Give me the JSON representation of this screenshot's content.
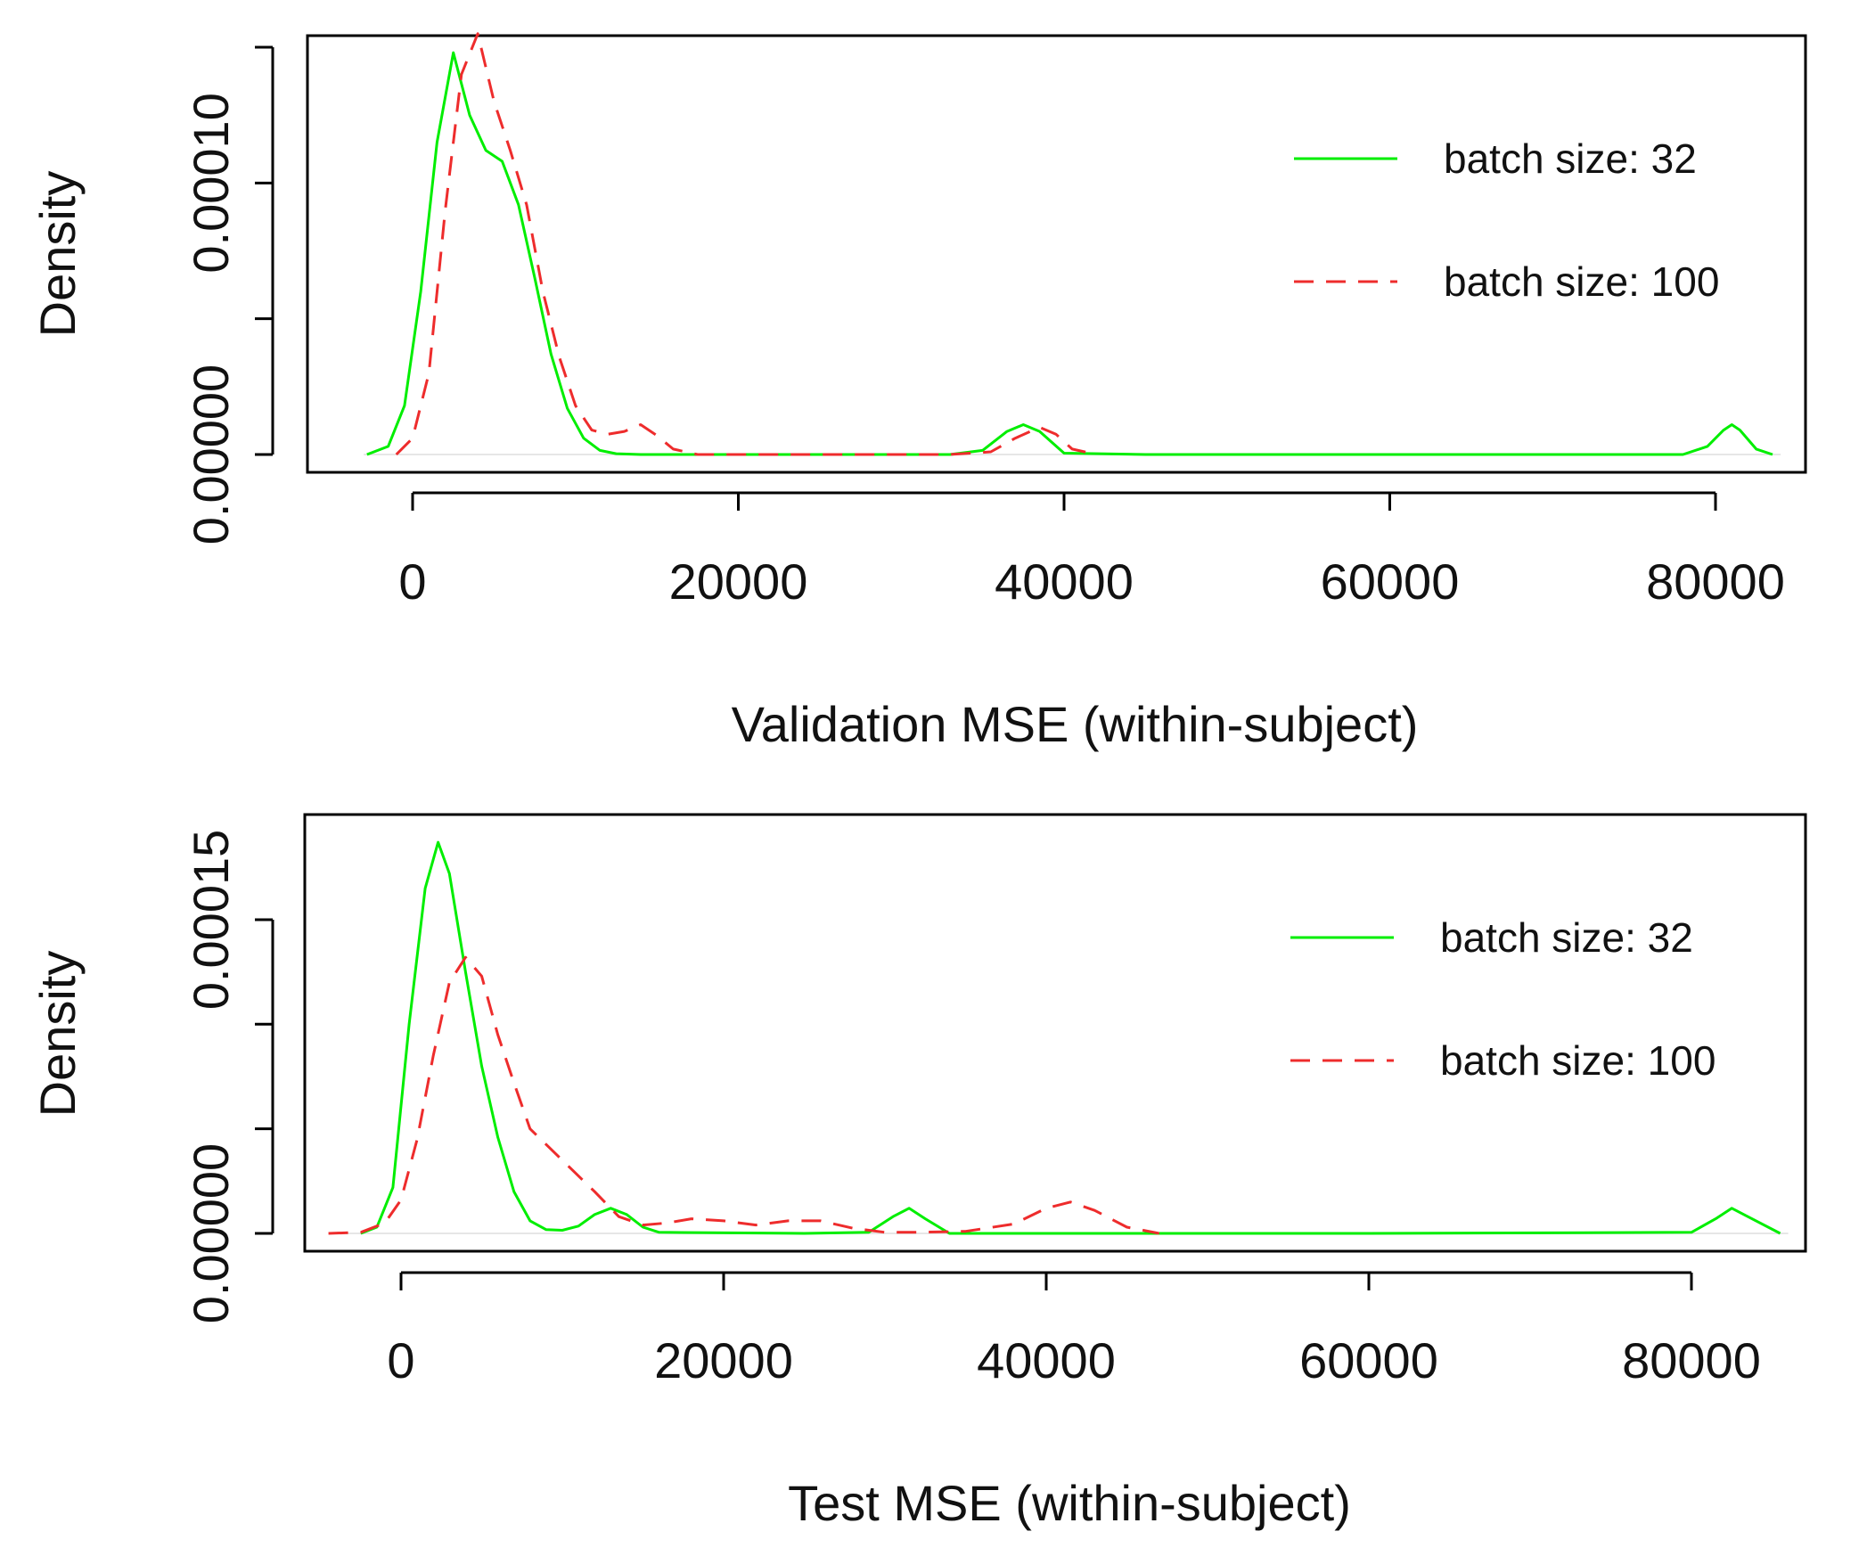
{
  "chart_data": [
    {
      "type": "line",
      "xlabel": "Validation MSE (within-subject)",
      "ylabel": "Density",
      "xlim": [
        -3000,
        84000
      ],
      "ylim": [
        0,
        0.000151
      ],
      "xticks": [
        0,
        20000,
        40000,
        60000,
        80000
      ],
      "xtick_labels": [
        "0",
        "20000",
        "40000",
        "60000",
        "80000"
      ],
      "yticks": [
        0,
        5e-05,
        0.0001,
        0.00015
      ],
      "ytick_labels": [
        {
          "value": 0,
          "label": "0.00000"
        },
        {
          "value": 0.0001,
          "label": "0.00010"
        }
      ],
      "legend": [
        "batch size: 32",
        "batch size: 100"
      ],
      "legend_position": "top-right",
      "series": [
        {
          "name": "batch size: 32",
          "color": "#00ee00",
          "dash": "solid",
          "x": [
            -2800,
            -1500,
            -500,
            500,
            1500,
            2500,
            3500,
            4500,
            5500,
            6500,
            7500,
            8500,
            9500,
            10500,
            11500,
            12500,
            14000,
            17000,
            25000,
            33000,
            35000,
            36500,
            37500,
            38500,
            40000,
            45000,
            60000,
            78000,
            79500,
            80500,
            81000,
            81500,
            82500,
            83500
          ],
          "y": [
            0,
            3e-06,
            1.8e-05,
            6e-05,
            0.000115,
            0.000148,
            0.000125,
            0.000112,
            0.000108,
            9.2e-05,
            6.5e-05,
            3.7e-05,
            1.7e-05,
            6e-06,
            1.5e-06,
            3e-07,
            0,
            0,
            0,
            0,
            1.5e-06,
            8.5e-06,
            1.1e-05,
            8.5e-06,
            5e-07,
            0,
            0,
            0,
            3e-06,
            9e-06,
            1.1e-05,
            9e-06,
            2e-06,
            0
          ]
        },
        {
          "name": "batch size: 100",
          "color": "#ee2c2c",
          "dash": "dashed",
          "x": [
            -1000,
            0,
            1000,
            2000,
            3000,
            4000,
            5000,
            6000,
            7000,
            8000,
            9000,
            10000,
            11000,
            12000,
            13000,
            14000,
            15000,
            16000,
            17500,
            25000,
            33000,
            35500,
            37000,
            38500,
            39500,
            40500,
            42000
          ],
          "y": [
            0,
            6e-06,
            3e-05,
            9e-05,
            0.00014,
            0.000155,
            0.00013,
            0.000112,
            9.2e-05,
            6e-05,
            3.6e-05,
            1.8e-05,
            9e-06,
            7.5e-06,
            8.5e-06,
            1.1e-05,
            7e-06,
            2e-06,
            0,
            0,
            0,
            1e-06,
            6e-06,
            1e-05,
            7.5e-06,
            2e-06,
            0
          ]
        }
      ]
    },
    {
      "type": "line",
      "xlabel": "Test MSE (within-subject)",
      "ylabel": "Density",
      "xlim": [
        -4500,
        86000
      ],
      "ylim": [
        0,
        0.000196
      ],
      "xticks": [
        0,
        20000,
        40000,
        60000,
        80000
      ],
      "xtick_labels": [
        "0",
        "20000",
        "40000",
        "60000",
        "80000"
      ],
      "yticks": [
        0,
        5e-05,
        0.0001,
        0.00015
      ],
      "ytick_labels": [
        {
          "value": 0,
          "label": "0.00000"
        },
        {
          "value": 0.00015,
          "label": "0.00015"
        }
      ],
      "legend": [
        "batch size: 32",
        "batch size: 100"
      ],
      "legend_position": "top-right",
      "series": [
        {
          "name": "batch size: 32",
          "color": "#00ee00",
          "dash": "solid",
          "x": [
            -2500,
            -1500,
            -500,
            500,
            1500,
            2300,
            3000,
            4000,
            5000,
            6000,
            7000,
            8000,
            9000,
            10000,
            11000,
            12000,
            13000,
            14000,
            15000,
            16000,
            25000,
            29000,
            30500,
            31500,
            32500,
            34000,
            40000,
            60000,
            80000,
            81500,
            82500,
            83500,
            85500
          ],
          "y": [
            0,
            3e-06,
            2.2e-05,
            0.0001,
            0.000165,
            0.000187,
            0.000172,
            0.000125,
            8e-05,
            4.6e-05,
            2e-05,
            6e-06,
            1.8e-06,
            1.5e-06,
            3.5e-06,
            9e-06,
            1.2e-05,
            9e-06,
            3e-06,
            5e-07,
            0,
            5e-07,
            8e-06,
            1.2e-05,
            7e-06,
            0,
            0,
            0,
            5e-07,
            7e-06,
            1.2e-05,
            8e-06,
            0
          ]
        },
        {
          "name": "batch size: 100",
          "color": "#ee2c2c",
          "dash": "dashed",
          "x": [
            -4500,
            -2500,
            -1000,
            0,
            1000,
            2000,
            3000,
            4000,
            5000,
            6000,
            7000,
            8000,
            10000,
            12000,
            13500,
            15000,
            16500,
            18000,
            20000,
            22000,
            24000,
            26000,
            28000,
            30000,
            32000,
            35000,
            38000,
            40000,
            41500,
            43000,
            45000,
            47000
          ],
          "y": [
            0,
            5e-07,
            5e-06,
            1.6e-05,
            4.5e-05,
            8.5e-05,
            0.00012,
            0.000132,
            0.000123,
            9.5e-05,
            7.2e-05,
            5e-05,
            3.5e-05,
            2e-05,
            8e-06,
            4e-06,
            5e-06,
            7e-06,
            6e-06,
            4e-06,
            6e-06,
            6e-06,
            2.5e-06,
            5e-07,
            5e-07,
            1e-06,
            4.5e-06,
            1.2e-05,
            1.5e-05,
            1.1e-05,
            3e-06,
            0
          ]
        }
      ]
    }
  ]
}
